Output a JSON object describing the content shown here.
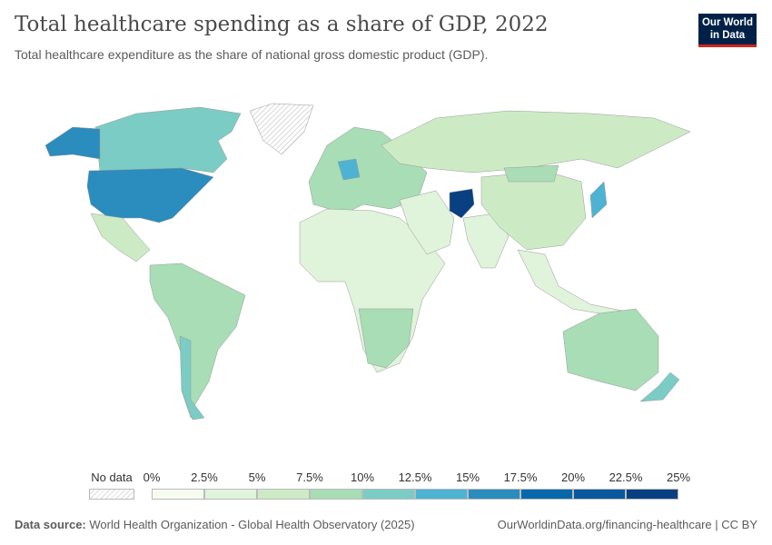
{
  "header": {
    "title": "Total healthcare spending as a share of GDP, 2022",
    "subtitle": "Total healthcare expenditure as the share of national gross domestic product (GDP).",
    "logo": "Our World in Data"
  },
  "legend": {
    "no_data": "No data",
    "bins": [
      "0%",
      "2.5%",
      "5%",
      "7.5%",
      "10%",
      "12.5%",
      "15%",
      "17.5%",
      "20%",
      "22.5%",
      "25%"
    ],
    "colors": [
      "#f7fcf0",
      "#e0f3db",
      "#ccebc5",
      "#a8ddb5",
      "#7bccc4",
      "#4eb3d3",
      "#2b8cbe",
      "#0868ac",
      "#08589e",
      "#084081"
    ]
  },
  "map": {
    "regions": [
      {
        "name": "Canada",
        "value_bin": 4
      },
      {
        "name": "United States",
        "value_bin": 6
      },
      {
        "name": "Alaska",
        "value_bin": 6
      },
      {
        "name": "Greenland",
        "value_bin": null
      },
      {
        "name": "Mexico",
        "value_bin": 2
      },
      {
        "name": "South America",
        "value_bin": 3
      },
      {
        "name": "Chile",
        "value_bin": 4
      },
      {
        "name": "Europe",
        "value_bin": 3
      },
      {
        "name": "Germany",
        "value_bin": 5
      },
      {
        "name": "Africa",
        "value_bin": 1
      },
      {
        "name": "Southern Africa",
        "value_bin": 3
      },
      {
        "name": "Russia",
        "value_bin": 2
      },
      {
        "name": "Middle East",
        "value_bin": 1
      },
      {
        "name": "Afghanistan",
        "value_bin": 9
      },
      {
        "name": "India",
        "value_bin": 1
      },
      {
        "name": "China",
        "value_bin": 2
      },
      {
        "name": "Mongolia",
        "value_bin": 3
      },
      {
        "name": "Japan",
        "value_bin": 5
      },
      {
        "name": "Southeast Asia",
        "value_bin": 1
      },
      {
        "name": "Australia",
        "value_bin": 3
      },
      {
        "name": "New Zealand",
        "value_bin": 4
      }
    ]
  },
  "footer": {
    "source_label": "Data source:",
    "source": "World Health Organization - Global Health Observatory (2025)",
    "url": "OurWorldinData.org/financing-healthcare | CC BY"
  }
}
